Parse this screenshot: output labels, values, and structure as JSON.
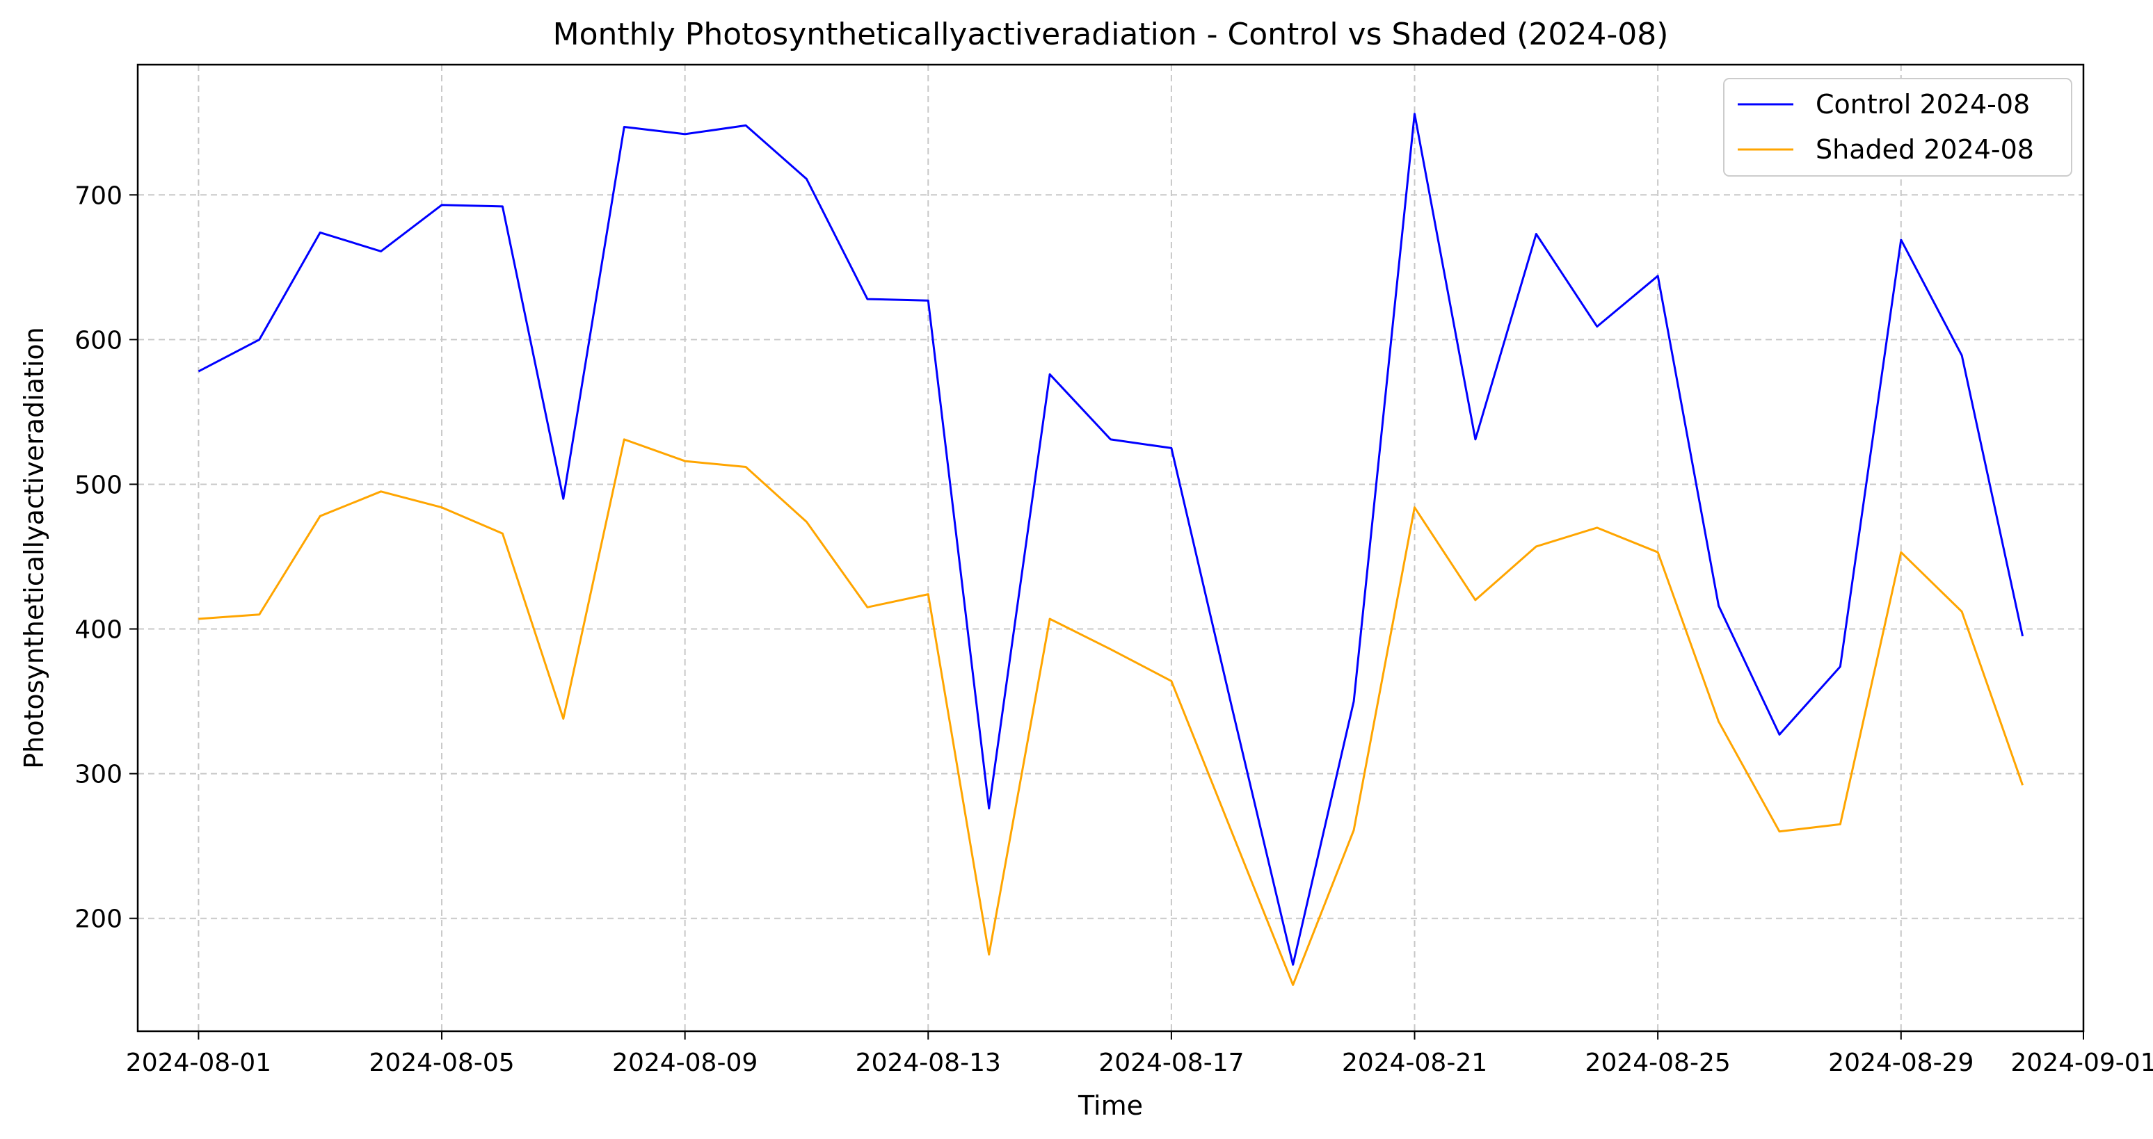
{
  "chart_data": {
    "type": "line",
    "title": "Monthly Photosyntheticallyactiveradiation - Control vs Shaded (2024-08)",
    "xlabel": "Time",
    "ylabel": "Photosyntheticallyactiveradiation",
    "x": [
      "2024-08-01",
      "2024-08-02",
      "2024-08-03",
      "2024-08-04",
      "2024-08-05",
      "2024-08-06",
      "2024-08-07",
      "2024-08-08",
      "2024-08-09",
      "2024-08-10",
      "2024-08-11",
      "2024-08-12",
      "2024-08-13",
      "2024-08-14",
      "2024-08-15",
      "2024-08-16",
      "2024-08-17",
      "2024-08-18",
      "2024-08-19",
      "2024-08-20",
      "2024-08-21",
      "2024-08-22",
      "2024-08-23",
      "2024-08-24",
      "2024-08-25",
      "2024-08-26",
      "2024-08-27",
      "2024-08-28",
      "2024-08-29",
      "2024-08-30",
      "2024-08-31"
    ],
    "xlim": [
      "2024-07-31",
      "2024-09-01"
    ],
    "x_ticks": [
      "2024-08-01",
      "2024-08-05",
      "2024-08-09",
      "2024-08-13",
      "2024-08-17",
      "2024-08-21",
      "2024-08-25",
      "2024-08-29",
      "2024-09-01"
    ],
    "ylim": [
      122,
      790
    ],
    "y_ticks": [
      200,
      300,
      400,
      500,
      600,
      700
    ],
    "grid": true,
    "legend_position": "top-right",
    "series": [
      {
        "name": "Control 2024-08",
        "color": "#0000ff",
        "values": [
          578,
          600,
          674,
          661,
          693,
          692,
          490,
          747,
          742,
          748,
          711,
          628,
          627,
          276,
          576,
          531,
          525,
          345,
          168,
          350,
          756,
          531,
          673,
          609,
          644,
          416,
          327,
          374,
          669,
          589,
          395
        ]
      },
      {
        "name": "Shaded 2024-08",
        "color": "#ffa500",
        "values": [
          407,
          410,
          478,
          495,
          484,
          466,
          338,
          531,
          516,
          512,
          474,
          415,
          424,
          175,
          407,
          386,
          364,
          259,
          154,
          261,
          484,
          420,
          457,
          470,
          453,
          336,
          260,
          265,
          453,
          412,
          292
        ]
      }
    ]
  }
}
